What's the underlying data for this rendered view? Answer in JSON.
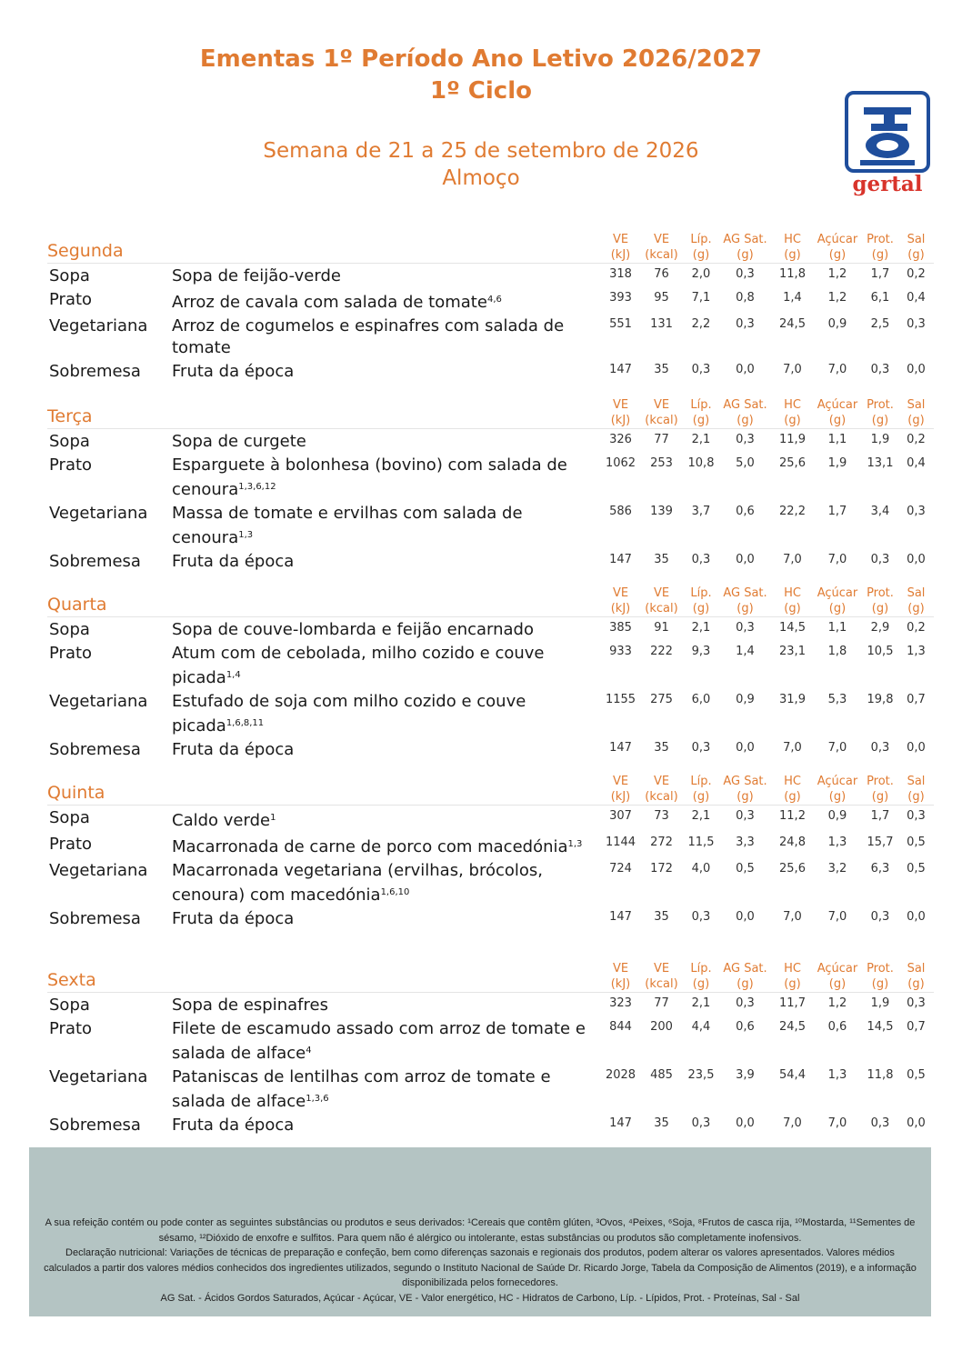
{
  "header": {
    "title": [
      "Ementas 1º Período Ano Letivo 2026/2027",
      "1º Ciclo"
    ],
    "subtitle": [
      "Semana de 21 a 25 de setembro de 2026",
      "Almoço"
    ],
    "logo": "gertal"
  },
  "columns": [
    {
      "name": "VE",
      "unit": "(kJ)"
    },
    {
      "name": "VE",
      "unit": "(kcal)"
    },
    {
      "name": "Líp.",
      "unit": "(g)"
    },
    {
      "name": "AG Sat.",
      "unit": "(g)"
    },
    {
      "name": "HC",
      "unit": "(g)"
    },
    {
      "name": "Açúcar",
      "unit": "(g)"
    },
    {
      "name": "Prot.",
      "unit": "(g)"
    },
    {
      "name": "Sal",
      "unit": "(g)"
    }
  ],
  "days": [
    {
      "name": "Segunda",
      "rows": [
        {
          "course": "Sopa",
          "dish": "Sopa de feijão-verde",
          "values": [
            "318",
            "76",
            "2,0",
            "0,3",
            "11,8",
            "1,2",
            "1,7",
            "0,2"
          ]
        },
        {
          "course": "Prato",
          "dish": "Arroz de cavala com salada de tomate",
          "allergens": "4,6",
          "values": [
            "393",
            "95",
            "7,1",
            "0,8",
            "1,4",
            "1,2",
            "6,1",
            "0,4"
          ]
        },
        {
          "course": "Vegetariana",
          "dish": "Arroz de cogumelos e espinafres com salada de tomate",
          "values": [
            "551",
            "131",
            "2,2",
            "0,3",
            "24,5",
            "0,9",
            "2,5",
            "0,3"
          ]
        },
        {
          "course": "Sobremesa",
          "dish": "Fruta da época",
          "values": [
            "147",
            "35",
            "0,3",
            "0,0",
            "7,0",
            "7,0",
            "0,3",
            "0,0"
          ]
        }
      ]
    },
    {
      "name": "Terça",
      "rows": [
        {
          "course": "Sopa",
          "dish": "Sopa de curgete",
          "values": [
            "326",
            "77",
            "2,1",
            "0,3",
            "11,9",
            "1,1",
            "1,9",
            "0,2"
          ]
        },
        {
          "course": "Prato",
          "dish": "Esparguete à bolonhesa (bovino) com salada de cenoura",
          "allergens": "1,3,6,12",
          "values": [
            "1062",
            "253",
            "10,8",
            "5,0",
            "25,6",
            "1,9",
            "13,1",
            "0,4"
          ]
        },
        {
          "course": "Vegetariana",
          "dish": "Massa de tomate e ervilhas com salada de cenoura",
          "allergens": "1,3",
          "values": [
            "586",
            "139",
            "3,7",
            "0,6",
            "22,2",
            "1,7",
            "3,4",
            "0,3"
          ]
        },
        {
          "course": "Sobremesa",
          "dish": "Fruta da época",
          "values": [
            "147",
            "35",
            "0,3",
            "0,0",
            "7,0",
            "7,0",
            "0,3",
            "0,0"
          ]
        }
      ]
    },
    {
      "name": "Quarta",
      "rows": [
        {
          "course": "Sopa",
          "dish": "Sopa de couve-lombarda e feijão encarnado",
          "values": [
            "385",
            "91",
            "2,1",
            "0,3",
            "14,5",
            "1,1",
            "2,9",
            "0,2"
          ]
        },
        {
          "course": "Prato",
          "dish": "Atum com de cebolada, milho cozido e couve picada",
          "allergens": "1,4",
          "values": [
            "933",
            "222",
            "9,3",
            "1,4",
            "23,1",
            "1,8",
            "10,5",
            "1,3"
          ]
        },
        {
          "course": "Vegetariana",
          "dish": "Estufado de soja com milho cozido e couve picada",
          "allergens": "1,6,8,11",
          "values": [
            "1155",
            "275",
            "6,0",
            "0,9",
            "31,9",
            "5,3",
            "19,8",
            "0,7"
          ]
        },
        {
          "course": "Sobremesa",
          "dish": "Fruta da época",
          "values": [
            "147",
            "35",
            "0,3",
            "0,0",
            "7,0",
            "7,0",
            "0,3",
            "0,0"
          ]
        }
      ]
    },
    {
      "name": "Quinta",
      "rows": [
        {
          "course": "Sopa",
          "dish": "Caldo verde",
          "allergens": "1",
          "values": [
            "307",
            "73",
            "2,1",
            "0,3",
            "11,2",
            "0,9",
            "1,7",
            "0,3"
          ]
        },
        {
          "course": "Prato",
          "dish": "Macarronada de carne de porco com macedónia",
          "allergens": "1,3",
          "values": [
            "1144",
            "272",
            "11,5",
            "3,3",
            "24,8",
            "1,3",
            "15,7",
            "0,5"
          ]
        },
        {
          "course": "Vegetariana",
          "dish": "Macarronada vegetariana (ervilhas, brócolos, cenoura) com macedónia",
          "allergens": "1,6,10",
          "values": [
            "724",
            "172",
            "4,0",
            "0,5",
            "25,6",
            "3,2",
            "6,3",
            "0,5"
          ]
        },
        {
          "course": "Sobremesa",
          "dish": "Fruta da época",
          "values": [
            "147",
            "35",
            "0,3",
            "0,0",
            "7,0",
            "7,0",
            "0,3",
            "0,0"
          ]
        }
      ]
    },
    {
      "name": "Sexta",
      "rows": [
        {
          "course": "Sopa",
          "dish": "Sopa de espinafres",
          "values": [
            "323",
            "77",
            "2,1",
            "0,3",
            "11,7",
            "1,2",
            "1,9",
            "0,3"
          ]
        },
        {
          "course": "Prato",
          "dish": "Filete de escamudo assado com arroz de tomate e salada de alface",
          "allergens": "4",
          "values": [
            "844",
            "200",
            "4,4",
            "0,6",
            "24,5",
            "0,6",
            "14,5",
            "0,7"
          ]
        },
        {
          "course": "Vegetariana",
          "dish": "Pataniscas de lentilhas com arroz de tomate e salada de alface",
          "allergens": "1,3,6",
          "values": [
            "2028",
            "485",
            "23,5",
            "3,9",
            "54,4",
            "1,3",
            "11,8",
            "0,5"
          ]
        },
        {
          "course": "Sobremesa",
          "dish": "Fruta da época",
          "values": [
            "147",
            "35",
            "0,3",
            "0,0",
            "7,0",
            "7,0",
            "0,3",
            "0,0"
          ]
        }
      ]
    }
  ],
  "footer": [
    "A sua refeição contém ou pode conter as seguintes substâncias ou produtos e seus derivados: ¹Cereais que contêm glúten, ³Ovos, ⁴Peixes, ⁶Soja, ⁸Frutos de casca rija, ¹⁰Mostarda, ¹¹Sementes de sésamo, ¹²Dióxido de enxofre e sulfitos. Para quem não é alérgico ou intolerante, estas substâncias ou produtos são completamente inofensivos.",
    "Declaração nutricional: Variações de técnicas de preparação e confeção, bem como diferenças sazonais e regionais dos produtos, podem alterar os valores apresentados. Valores médios calculados a partir dos valores médios conhecidos dos ingredientes utilizados, segundo o Instituto Nacional de Saúde Dr. Ricardo Jorge, Tabela da Composição de Alimentos (2019), e a informação disponibilizada pelos fornecedores.",
    "AG Sat. - Ácidos Gordos Saturados, Açúcar - Açúcar, VE - Valor energético, HC - Hidratos de Carbono, Líp. - Lípidos, Prot. - Proteínas, Sal - Sal"
  ]
}
